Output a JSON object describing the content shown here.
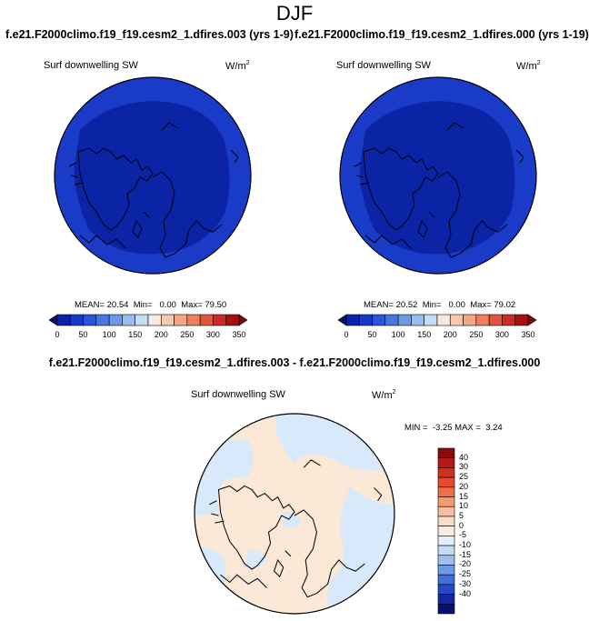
{
  "page": {
    "title": "DJF"
  },
  "chart_data": [
    {
      "type": "heatmap",
      "projection": "north-polar-stereographic",
      "run_title": "f.e21.F2000climo.f19_f19.cesm2_1.dfires.003 (yrs 1-9)",
      "label": "Surf downwelling SW",
      "units": "W/m",
      "units_sup": "2",
      "stats": {
        "mean": "MEAN= 20.54",
        "min": "Min=   0.00",
        "max": "Max= 79.50"
      },
      "colorbar": {
        "orientation": "horizontal",
        "tick_labels": [
          "0",
          "50",
          "100",
          "150",
          "200",
          "250",
          "300",
          "350"
        ],
        "levels": [
          0,
          25,
          50,
          75,
          100,
          125,
          150,
          175,
          200,
          225,
          250,
          275,
          300,
          325,
          350
        ],
        "colors": [
          "#08106e",
          "#0b23a8",
          "#1838c8",
          "#2a56d6",
          "#4778e0",
          "#6d98e8",
          "#9cbdf0",
          "#c9dcf6",
          "#f7e9e0",
          "#f6c9b0",
          "#f3a785",
          "#ee7f5c",
          "#e4523c",
          "#cc2a23",
          "#a70f12",
          "#7a0a0a"
        ]
      },
      "fill_colors": {
        "background": "#1a3ac8",
        "interior": "#0b24a6"
      }
    },
    {
      "type": "heatmap",
      "projection": "north-polar-stereographic",
      "run_title": "f.e21.F2000climo.f19_f19.cesm2_1.dfires.000 (yrs 1-19)",
      "label": "Surf downwelling SW",
      "units": "W/m",
      "units_sup": "2",
      "stats": {
        "mean": "MEAN= 20.52",
        "min": "Min=   0.00",
        "max": "Max= 79.02"
      },
      "colorbar": {
        "orientation": "horizontal",
        "tick_labels": [
          "0",
          "50",
          "100",
          "150",
          "200",
          "250",
          "300",
          "350"
        ],
        "levels": [
          0,
          25,
          50,
          75,
          100,
          125,
          150,
          175,
          200,
          225,
          250,
          275,
          300,
          325,
          350
        ],
        "colors": [
          "#08106e",
          "#0b23a8",
          "#1838c8",
          "#2a56d6",
          "#4778e0",
          "#6d98e8",
          "#9cbdf0",
          "#c9dcf6",
          "#f7e9e0",
          "#f6c9b0",
          "#f3a785",
          "#ee7f5c",
          "#e4523c",
          "#cc2a23",
          "#a70f12",
          "#7a0a0a"
        ]
      },
      "fill_colors": {
        "background": "#1a3ac8",
        "interior": "#0b24a6"
      }
    },
    {
      "type": "heatmap",
      "projection": "north-polar-stereographic",
      "run_title": "f.e21.F2000climo.f19_f19.cesm2_1.dfires.003 - f.e21.F2000climo.f19_f19.cesm2_1.dfires.000",
      "label": "Surf downwelling SW",
      "units": "W/m",
      "units_sup": "2",
      "stats": {
        "min_max": "MIN =  -3.25 MAX =  3.24"
      },
      "colorbar": {
        "orientation": "vertical",
        "tick_labels": [
          "40",
          "30",
          "25",
          "20",
          "15",
          "10",
          "5",
          "0",
          "-5",
          "-10",
          "-15",
          "-20",
          "-25",
          "-30",
          "-40"
        ],
        "colors": [
          "#8b0a0a",
          "#b51a12",
          "#d22e1e",
          "#e6492c",
          "#f06e45",
          "#f49a70",
          "#f7bea0",
          "#f9dcc8",
          "#fbece0",
          "#e2effb",
          "#c4daf5",
          "#9fc0ef",
          "#6e9be6",
          "#3f6fdc",
          "#2249c8",
          "#1128a0",
          "#08106e"
        ]
      },
      "fill_colors": {
        "background": "#fbe8d6",
        "negative": "#d8e9fb"
      }
    }
  ]
}
